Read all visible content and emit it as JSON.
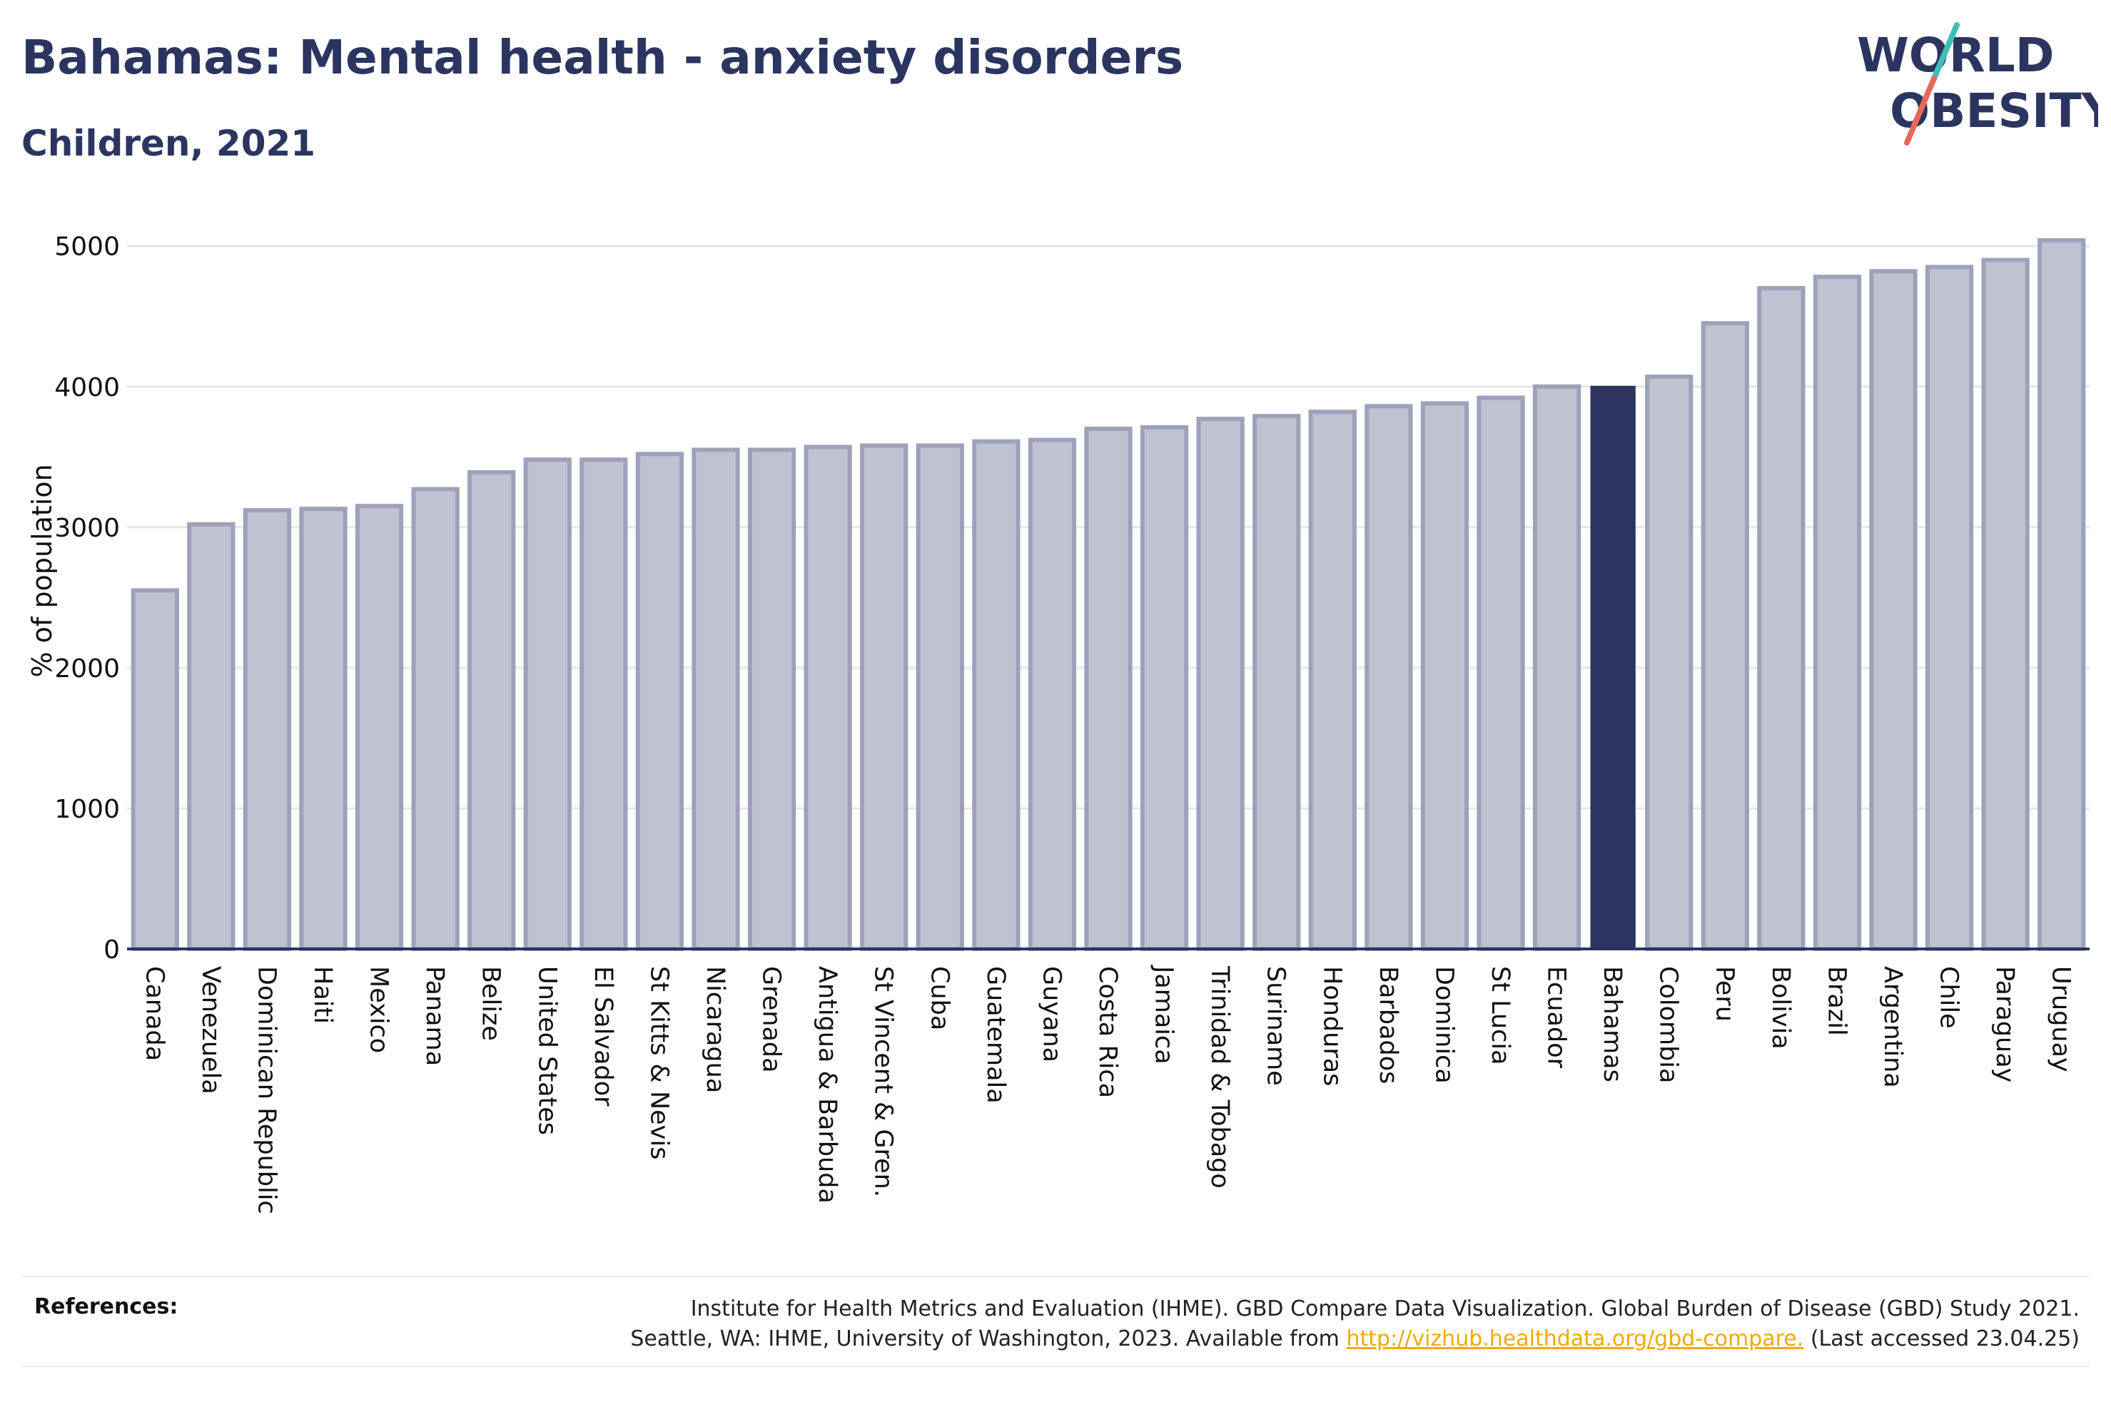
{
  "header": {
    "title": "Bahamas: Mental health - anxiety disorders",
    "subtitle": "Children, 2021"
  },
  "logo": {
    "line1": "WORLD",
    "line2": "OBESITY"
  },
  "chart_data": {
    "type": "bar",
    "ylabel": "% of population",
    "ylim": [
      0,
      5100
    ],
    "yticks": [
      0,
      1000,
      2000,
      3000,
      4000,
      5000
    ],
    "grid": true,
    "highlight": "Bahamas",
    "categories": [
      "Canada",
      "Venezuela",
      "Dominican Republic",
      "Haiti",
      "Mexico",
      "Panama",
      "Belize",
      "United States",
      "El Salvador",
      "St Kitts & Nevis",
      "Nicaragua",
      "Grenada",
      "Antigua & Barbuda",
      "St Vincent & Gren.",
      "Cuba",
      "Guatemala",
      "Guyana",
      "Costa Rica",
      "Jamaica",
      "Trinidad & Tobago",
      "Suriname",
      "Honduras",
      "Barbados",
      "Dominica",
      "St Lucia",
      "Ecuador",
      "Bahamas",
      "Colombia",
      "Peru",
      "Bolivia",
      "Brazil",
      "Argentina",
      "Chile",
      "Paraguay",
      "Uruguay"
    ],
    "values": [
      2550,
      3020,
      3120,
      3130,
      3150,
      3270,
      3390,
      3480,
      3480,
      3520,
      3550,
      3550,
      3570,
      3580,
      3580,
      3610,
      3620,
      3700,
      3710,
      3770,
      3790,
      3820,
      3860,
      3880,
      3920,
      4000,
      4000,
      4070,
      4450,
      4700,
      4780,
      4820,
      4850,
      4900,
      5040
    ],
    "colors": {
      "bar": "#bfc2d0",
      "bar_border": "#9da2ba",
      "highlight": "#2b3560",
      "grid": "#e6e6e6",
      "axis": "#2b3560"
    }
  },
  "references": {
    "label": "References:",
    "line1": "Institute for Health Metrics and Evaluation (IHME). GBD Compare Data Visualization. Global Burden of Disease (GBD) Study 2021.",
    "line2_pre": "Seattle, WA: IHME, University of Washington, 2023. Available from ",
    "link": "http://vizhub.healthdata.org/gbd-compare.",
    "line2_post": " (Last accessed 23.04.25)"
  }
}
